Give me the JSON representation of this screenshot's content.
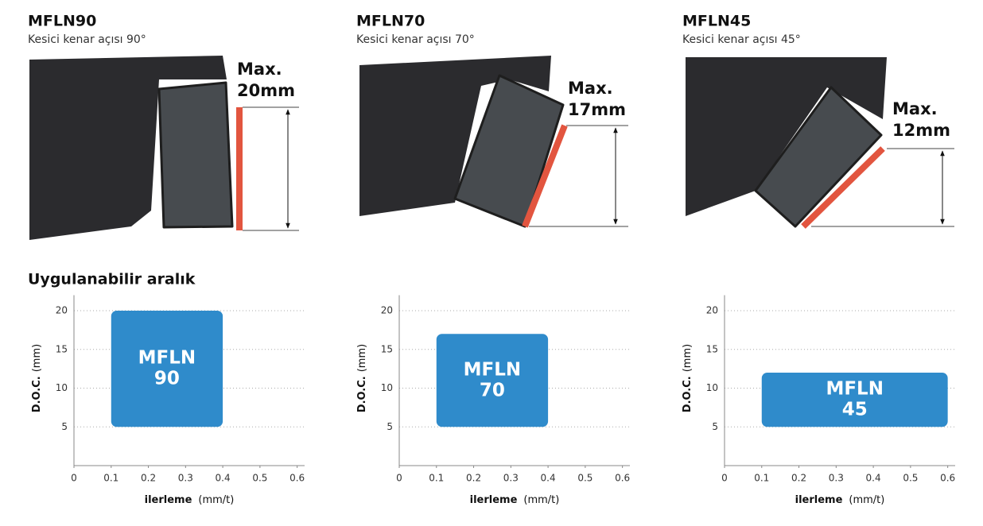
{
  "section_title": "Uygulanabilir aralık",
  "chart_data": [
    {
      "type": "range",
      "title": "MFLN90",
      "subtitle": "Kesici kenar açısı 90°",
      "max_label": [
        "Max.",
        "20mm"
      ],
      "x_label": "ilerleme",
      "x_unit": "(mm/t)",
      "y_label": "D.O.C.",
      "y_unit": "(mm)",
      "xlim": [
        0,
        0.62
      ],
      "ylim": [
        0,
        22
      ],
      "xticks": [
        0,
        0.1,
        0.2,
        0.3,
        0.4,
        0.5,
        0.6
      ],
      "yticks": [
        5,
        10,
        15,
        20
      ],
      "grid": true,
      "box": {
        "name_lines": [
          "MFLN",
          "90"
        ],
        "x": [
          0.1,
          0.4
        ],
        "y": [
          5,
          20
        ],
        "color": "#2f8bcb"
      }
    },
    {
      "type": "range",
      "title": "MFLN70",
      "subtitle": "Kesici kenar açısı 70°",
      "max_label": [
        "Max.",
        "17mm"
      ],
      "x_label": "ilerleme",
      "x_unit": "(mm/t)",
      "y_label": "D.O.C.",
      "y_unit": "(mm)",
      "xlim": [
        0,
        0.62
      ],
      "ylim": [
        0,
        22
      ],
      "xticks": [
        0,
        0.1,
        0.2,
        0.3,
        0.4,
        0.5,
        0.6
      ],
      "yticks": [
        5,
        10,
        15,
        20
      ],
      "grid": true,
      "box": {
        "name_lines": [
          "MFLN",
          "70"
        ],
        "x": [
          0.1,
          0.4
        ],
        "y": [
          5,
          17
        ],
        "color": "#2f8bcb"
      }
    },
    {
      "type": "range",
      "title": "MFLN45",
      "subtitle": "Kesici kenar açısı 45°",
      "max_label": [
        "Max.",
        "12mm"
      ],
      "x_label": "ilerleme",
      "x_unit": "(mm/t)",
      "y_label": "D.O.C.",
      "y_unit": "(mm)",
      "xlim": [
        0,
        0.62
      ],
      "ylim": [
        0,
        22
      ],
      "xticks": [
        0,
        0.1,
        0.2,
        0.3,
        0.4,
        0.5,
        0.6
      ],
      "yticks": [
        5,
        10,
        15,
        20
      ],
      "grid": true,
      "box": {
        "name_lines": [
          "MFLN",
          "45"
        ],
        "x": [
          0.1,
          0.6
        ],
        "y": [
          5,
          12
        ],
        "color": "#2f8bcb"
      }
    }
  ]
}
